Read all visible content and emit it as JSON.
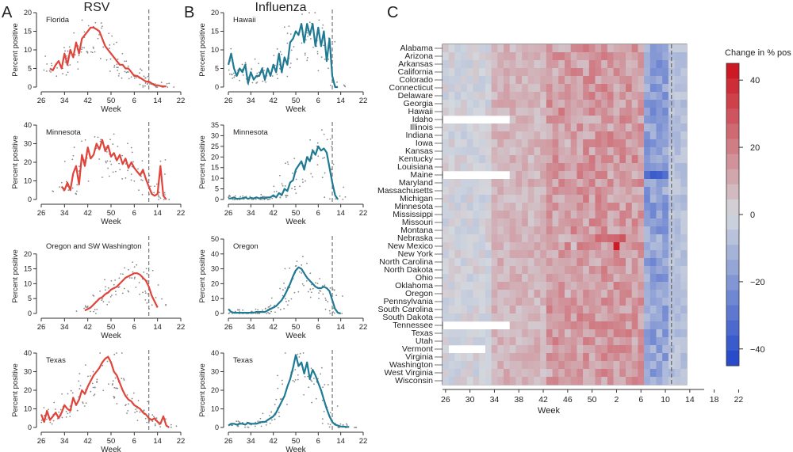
{
  "panel_letters": {
    "a": "A",
    "b": "B",
    "c": "C"
  },
  "titles": {
    "rsv": "RSV",
    "flu": "Influenza"
  },
  "ylabel": "Percent positive",
  "xlabel": "Week",
  "line_colors": {
    "rsv": "#e0443a",
    "flu": "#1f7a94",
    "dots": "#888888",
    "vline": "#777777"
  },
  "small_x_ticks": {
    "rsv": [
      "26",
      "34",
      "42",
      "50",
      "6",
      "14",
      "22"
    ],
    "flu": [
      "26",
      "34",
      "42",
      "50",
      "6",
      "14",
      "22"
    ]
  },
  "chart_data": [
    {
      "type": "line",
      "panel": "A",
      "title": "Florida",
      "xlabel": "Week",
      "ylabel": "Percent positive",
      "ylim": [
        0,
        20
      ],
      "yticks": [
        0,
        5,
        10,
        15,
        20
      ],
      "x": [
        29,
        30,
        31,
        32,
        33,
        34,
        35,
        36,
        37,
        38,
        39,
        40,
        41,
        42,
        43,
        44,
        45,
        46,
        47,
        48,
        49,
        50,
        51,
        52,
        1,
        2,
        3,
        4,
        5,
        6,
        7,
        8,
        9,
        10,
        11,
        12,
        13,
        14,
        15,
        16,
        17
      ],
      "series": [
        {
          "color": "rsv",
          "values": [
            5,
            4.5,
            6,
            7,
            5,
            9,
            6,
            10,
            8,
            12,
            9,
            13,
            14,
            15,
            16,
            16,
            15.5,
            15,
            13,
            11,
            10,
            9,
            8,
            7,
            6,
            6,
            5,
            5,
            4,
            3,
            3,
            2.5,
            2,
            1.5,
            1.5,
            1,
            0.5,
            0.5,
            0.3,
            0.2,
            0.2
          ]
        }
      ],
      "vline_week": 11
    },
    {
      "type": "line",
      "panel": "A",
      "title": "Minnesota",
      "xlabel": "Week",
      "ylabel": "Percent positive",
      "ylim": [
        0,
        40
      ],
      "yticks": [
        0,
        10,
        20,
        30,
        40
      ],
      "x": [
        33,
        34,
        35,
        36,
        37,
        38,
        39,
        40,
        41,
        42,
        43,
        44,
        45,
        46,
        47,
        48,
        49,
        50,
        51,
        52,
        1,
        2,
        3,
        4,
        5,
        6,
        7,
        8,
        9,
        10,
        11,
        12,
        13,
        14,
        15,
        16,
        17
      ],
      "series": [
        {
          "color": "rsv",
          "values": [
            7,
            5,
            9,
            5,
            14,
            18,
            8,
            24,
            18,
            28,
            22,
            24,
            30,
            27,
            32,
            26,
            29,
            23,
            25,
            21,
            24,
            19,
            22,
            17,
            20,
            17,
            15,
            13,
            16,
            11,
            7,
            3,
            2,
            3,
            18,
            2,
            0
          ]
        }
      ],
      "vline_week": 11
    },
    {
      "type": "line",
      "panel": "A",
      "title": "Oregon and SW Washington",
      "xlabel": "Week",
      "ylabel": "Percent positive",
      "ylim": [
        0,
        25
      ],
      "yticks": [
        0,
        5,
        10,
        15,
        20
      ],
      "x": [
        41,
        42,
        43,
        44,
        45,
        46,
        47,
        48,
        49,
        50,
        51,
        52,
        1,
        2,
        3,
        4,
        5,
        6,
        7,
        8,
        9,
        10,
        11,
        12,
        13,
        14
      ],
      "series": [
        {
          "color": "rsv",
          "values": [
            1,
            1.5,
            2,
            3,
            4,
            5,
            5.5,
            6.5,
            7,
            8,
            8.5,
            9,
            10,
            11,
            12,
            12.5,
            13,
            13.5,
            13.5,
            13,
            12,
            11,
            9,
            6,
            4,
            2
          ]
        }
      ],
      "vline_week": 11
    },
    {
      "type": "line",
      "panel": "A",
      "title": "Texas",
      "xlabel": "Week",
      "ylabel": "Percent positive",
      "ylim": [
        0,
        40
      ],
      "yticks": [
        0,
        10,
        20,
        30,
        40
      ],
      "x": [
        26,
        27,
        28,
        29,
        30,
        31,
        32,
        33,
        34,
        35,
        36,
        37,
        38,
        39,
        40,
        41,
        42,
        43,
        44,
        45,
        46,
        47,
        48,
        49,
        50,
        51,
        52,
        1,
        2,
        3,
        4,
        5,
        6,
        7,
        8,
        9,
        10,
        11,
        12,
        13,
        14,
        15,
        16,
        17,
        18
      ],
      "series": [
        {
          "color": "rsv",
          "values": [
            7,
            3,
            9,
            4,
            6,
            8,
            5,
            8,
            12,
            10,
            9,
            16,
            12,
            15,
            20,
            18,
            22,
            25,
            28,
            30,
            32,
            35,
            37,
            38,
            35,
            30,
            28,
            24,
            20,
            17,
            15,
            14,
            12,
            11,
            10,
            8,
            7,
            5,
            4,
            5,
            3,
            2,
            6,
            1,
            0
          ]
        }
      ],
      "vline_week": 11
    },
    {
      "type": "line",
      "panel": "B",
      "title": "Hawaii",
      "xlabel": "Week",
      "ylabel": "Percent positive",
      "ylim": [
        0,
        20
      ],
      "yticks": [
        0,
        5,
        10,
        15,
        20
      ],
      "x": [
        26,
        27,
        28,
        29,
        30,
        31,
        32,
        33,
        34,
        35,
        36,
        37,
        38,
        39,
        40,
        41,
        42,
        43,
        44,
        45,
        46,
        47,
        48,
        49,
        50,
        51,
        52,
        1,
        2,
        3,
        4,
        5,
        6,
        7,
        8,
        9,
        10,
        11,
        12,
        13
      ],
      "series": [
        {
          "color": "flu",
          "values": [
            6,
            9,
            5,
            3,
            5,
            4,
            6,
            1,
            4,
            2,
            3,
            3,
            5,
            2,
            5,
            3,
            6,
            4,
            9,
            4,
            8,
            6,
            12,
            13,
            15,
            14,
            17,
            12,
            17,
            14,
            17,
            11,
            16,
            11,
            15,
            7,
            13,
            3,
            0,
            0
          ]
        }
      ],
      "vline_week": 11
    },
    {
      "type": "line",
      "panel": "B",
      "title": "Minnesota",
      "xlabel": "Week",
      "ylabel": "Percent positive",
      "ylim": [
        0,
        35
      ],
      "yticks": [
        0,
        5,
        10,
        15,
        20,
        25,
        30,
        35
      ],
      "x": [
        26,
        27,
        28,
        29,
        30,
        31,
        32,
        33,
        34,
        35,
        36,
        37,
        38,
        39,
        40,
        41,
        42,
        43,
        44,
        45,
        46,
        47,
        48,
        49,
        50,
        51,
        52,
        1,
        2,
        3,
        4,
        5,
        6,
        7,
        8,
        9,
        10,
        11,
        12,
        13
      ],
      "series": [
        {
          "color": "flu",
          "values": [
            0.5,
            0.5,
            1,
            0.3,
            0.5,
            0.5,
            1,
            0.3,
            0.8,
            0.5,
            1,
            0.5,
            0.8,
            0.5,
            1,
            1,
            2,
            1,
            3,
            2,
            5,
            4,
            8,
            9,
            14,
            16,
            18,
            14,
            20,
            18,
            23,
            21,
            25,
            23,
            24,
            22,
            15,
            8,
            2,
            0
          ]
        }
      ],
      "vline_week": 11
    },
    {
      "type": "line",
      "panel": "B",
      "title": "Oregon",
      "xlabel": "Week",
      "ylabel": "Percent positive",
      "ylim": [
        0,
        50
      ],
      "yticks": [
        0,
        10,
        20,
        30,
        40,
        50
      ],
      "x": [
        26,
        27,
        28,
        29,
        30,
        31,
        32,
        33,
        34,
        35,
        36,
        37,
        38,
        39,
        40,
        41,
        42,
        43,
        44,
        45,
        46,
        47,
        48,
        49,
        50,
        51,
        52,
        1,
        2,
        3,
        4,
        5,
        6,
        7,
        8,
        9,
        10,
        11,
        12,
        13,
        14
      ],
      "series": [
        {
          "color": "flu",
          "values": [
            3,
            1,
            0.5,
            0.5,
            0.5,
            0.5,
            0.5,
            0.5,
            0.5,
            0.5,
            1,
            1,
            1,
            1,
            2,
            3,
            4,
            5,
            7,
            9,
            12,
            16,
            20,
            25,
            29,
            31,
            30,
            27,
            24,
            22,
            20,
            18,
            17,
            17,
            18,
            17,
            15,
            9,
            3,
            0.5,
            0
          ]
        }
      ],
      "vline_week": 11
    },
    {
      "type": "line",
      "panel": "B",
      "title": "Texas",
      "xlabel": "Week",
      "ylabel": "Percent positive",
      "ylim": [
        0,
        40
      ],
      "yticks": [
        0,
        10,
        20,
        30,
        40
      ],
      "x": [
        26,
        27,
        28,
        29,
        30,
        31,
        32,
        33,
        34,
        35,
        36,
        37,
        38,
        39,
        40,
        41,
        42,
        43,
        44,
        45,
        46,
        47,
        48,
        49,
        50,
        51,
        52,
        1,
        2,
        3,
        4,
        5,
        6,
        7,
        8,
        9,
        10,
        11,
        12,
        13,
        14,
        15,
        16,
        17
      ],
      "series": [
        {
          "color": "flu",
          "values": [
            1,
            2,
            2,
            1.5,
            2,
            2,
            1.5,
            2.5,
            2,
            2,
            2,
            2.5,
            3,
            3,
            4,
            5,
            6,
            8,
            11,
            14,
            17,
            22,
            26,
            32,
            39,
            33,
            35,
            29,
            35,
            26,
            31,
            28,
            24,
            20,
            15,
            10,
            6,
            3,
            1.5,
            1,
            0.5,
            0.5,
            0.3,
            0.3
          ]
        }
      ],
      "vline_week": 11
    },
    {
      "type": "heatmap",
      "panel": "C",
      "xlabel": "Week",
      "x_ticks": [
        "26",
        "30",
        "34",
        "38",
        "42",
        "46",
        "50",
        "2",
        "6",
        "10",
        "14",
        "18",
        "22"
      ],
      "states": [
        "Alabama",
        "Arizona",
        "Arkansas",
        "California",
        "Colorado",
        "Connecticut",
        "Delaware",
        "Georgia",
        "Hawaii",
        "Idaho",
        "Illinois",
        "Indiana",
        "Iowa",
        "Kansas",
        "Kentucky",
        "Louisiana",
        "Maine",
        "Maryland",
        "Massachusetts",
        "Michigan",
        "Minnesota",
        "Mississippi",
        "Missouri",
        "Montana",
        "Nebraska",
        "New Mexico",
        "New York",
        "North Carolina",
        "North Dakota",
        "Ohio",
        "Oklahoma",
        "Oregon",
        "Pennsylvania",
        "South Carolina",
        "South Dakota",
        "Tennessee",
        "Texas",
        "Utah",
        "Vermont",
        "Virginia",
        "Washington",
        "West Virginia",
        "Wisconsin"
      ],
      "legend_title": "Change in % pos",
      "legend_ticks": [
        "40",
        "20",
        "0",
        "−20",
        "−40"
      ],
      "color_range": [
        -45,
        45
      ],
      "colors": {
        "neg": "#1f45c8",
        "mid": "#d3d8de",
        "pos": "#cc0f1a"
      },
      "cells_note": "",
      "peak_cells": [
        {
          "state": "New Mexico",
          "week": 2,
          "value": 42
        },
        {
          "state": "Maine",
          "week": 14,
          "value": -40
        }
      ],
      "vline_week": 11
    }
  ]
}
